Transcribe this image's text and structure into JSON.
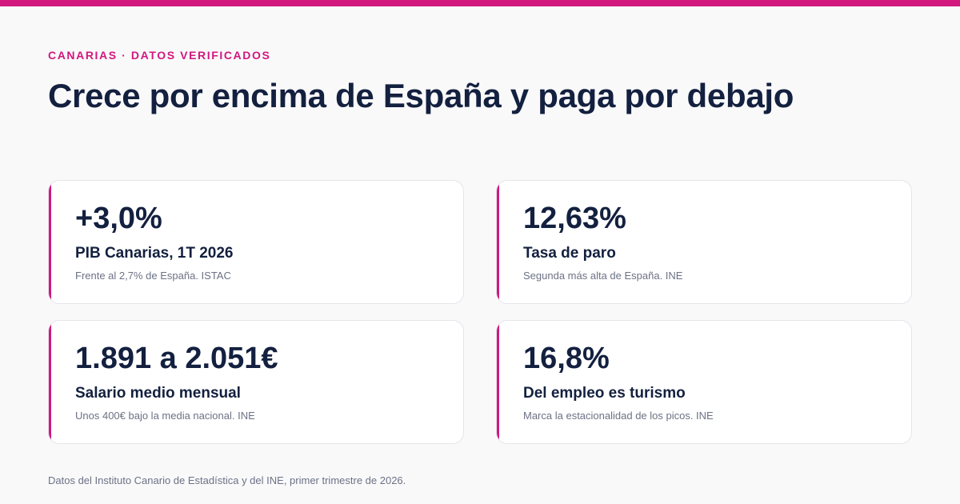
{
  "brand": {
    "accent_color": "#d2177f",
    "text_color": "#13203f"
  },
  "header": {
    "eyebrow": "CANARIAS · DATOS VERIFICADOS",
    "title": "Crece por encima de España y paga por debajo"
  },
  "stats": [
    {
      "value": "+3,0%",
      "label": "PIB Canarias, 1T 2026",
      "note": "Frente al 2,7% de España. ISTAC"
    },
    {
      "value": "12,63%",
      "label": "Tasa de paro",
      "note": "Segunda más alta de España. INE"
    },
    {
      "value": "1.891 a 2.051€",
      "label": "Salario medio mensual",
      "note": "Unos 400€ bajo la media nacional. INE"
    },
    {
      "value": "16,8%",
      "label": "Del empleo es turismo",
      "note": "Marca la estacionalidad de los picos. INE"
    }
  ],
  "footer": {
    "source": "Datos del Instituto Canario de Estadística y del INE, primer trimestre de 2026."
  }
}
